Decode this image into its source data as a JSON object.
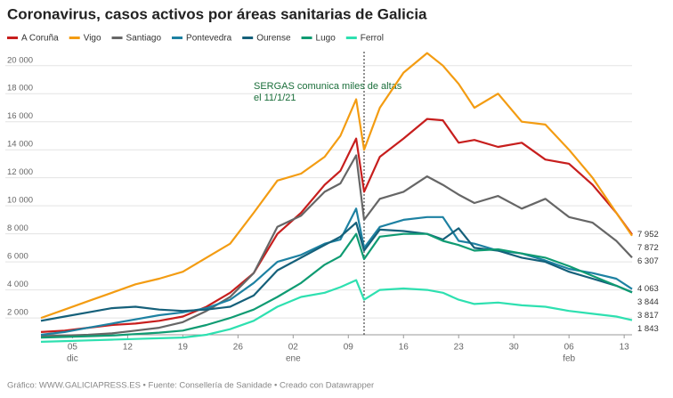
{
  "chart_data": {
    "type": "line",
    "title": "Coronavirus, casos activos por áreas sanitarias de Galicia",
    "footer": "Gráfico: WWW.GALICIAPRESS.ES • Fuente: Consellería de Sanidade • Creado con Datawrapper",
    "x": [
      "12-01",
      "12-04",
      "12-07",
      "12-10",
      "12-13",
      "12-16",
      "12-19",
      "12-22",
      "12-25",
      "12-28",
      "12-31",
      "01-03",
      "01-06",
      "01-08",
      "01-10",
      "01-11",
      "01-13",
      "01-16",
      "01-19",
      "01-21",
      "01-23",
      "01-25",
      "01-28",
      "01-31",
      "02-03",
      "02-06",
      "02-09",
      "02-12",
      "02-14"
    ],
    "xlim": [
      "12-01",
      "02-14"
    ],
    "xticks": [
      {
        "value": "12-05",
        "label": "05",
        "month": "dic"
      },
      {
        "value": "12-12",
        "label": "12"
      },
      {
        "value": "12-19",
        "label": "19"
      },
      {
        "value": "12-26",
        "label": "26"
      },
      {
        "value": "01-02",
        "label": "02",
        "month": "ene"
      },
      {
        "value": "01-09",
        "label": "09"
      },
      {
        "value": "01-16",
        "label": "16"
      },
      {
        "value": "01-23",
        "label": "23"
      },
      {
        "value": "01-30",
        "label": "30"
      },
      {
        "value": "02-06",
        "label": "06",
        "month": "feb"
      },
      {
        "value": "02-13",
        "label": "13"
      }
    ],
    "ylim": [
      800,
      21000
    ],
    "yticks": [
      {
        "value": 2000,
        "label": "2 000"
      },
      {
        "value": 4000,
        "label": "4 000"
      },
      {
        "value": 6000,
        "label": "6 000"
      },
      {
        "value": 8000,
        "label": "8 000"
      },
      {
        "value": 10000,
        "label": "10 000"
      },
      {
        "value": 12000,
        "label": "12 000"
      },
      {
        "value": 14000,
        "label": "14 000"
      },
      {
        "value": 16000,
        "label": "16 000"
      },
      {
        "value": 18000,
        "label": "18 000"
      },
      {
        "value": 20000,
        "label": "20 000"
      }
    ],
    "grid": true,
    "annotation": {
      "x": "01-11",
      "lines": [
        "SERGAS comunica miles de altas",
        "el 11/1/21"
      ],
      "color": "#1a6e3a"
    },
    "series": [
      {
        "name": "A Coruña",
        "color": "#c71e1d",
        "end_label": "7 952",
        "values": [
          1000,
          1100,
          1300,
          1500,
          1600,
          1800,
          2100,
          2800,
          3800,
          5200,
          8000,
          9500,
          11500,
          12500,
          14800,
          11000,
          13500,
          14800,
          16200,
          16100,
          14500,
          14700,
          14200,
          14500,
          13300,
          13000,
          11500,
          9500,
          7952
        ]
      },
      {
        "name": "Vigo",
        "color": "#f39c12",
        "end_label": "7 872",
        "values": [
          2000,
          2600,
          3200,
          3800,
          4400,
          4800,
          5300,
          6300,
          7300,
          9500,
          11800,
          12300,
          13500,
          15000,
          17600,
          14000,
          17000,
          19500,
          20900,
          20000,
          18700,
          17000,
          18000,
          16000,
          15800,
          14000,
          12000,
          9500,
          7872
        ]
      },
      {
        "name": "Santiago",
        "color": "#666666",
        "end_label": "6 307",
        "values": [
          700,
          750,
          800,
          900,
          1100,
          1300,
          1700,
          2500,
          3500,
          5200,
          8500,
          9300,
          11000,
          11600,
          13600,
          9000,
          10500,
          11000,
          12100,
          11500,
          10800,
          10200,
          10700,
          9800,
          10500,
          9200,
          8800,
          7500,
          6307
        ]
      },
      {
        "name": "Pontevedra",
        "color": "#1d81a2",
        "end_label": "4 063",
        "values": [
          800,
          1000,
          1300,
          1600,
          1900,
          2200,
          2400,
          2700,
          3300,
          4500,
          6000,
          6500,
          7300,
          7600,
          9800,
          7000,
          8500,
          9000,
          9200,
          9200,
          7500,
          7300,
          6800,
          6600,
          6100,
          5500,
          5200,
          4800,
          4063
        ]
      },
      {
        "name": "Ourense",
        "color": "#15607a",
        "end_label": "3 844",
        "values": [
          1800,
          2100,
          2400,
          2700,
          2800,
          2600,
          2500,
          2600,
          2800,
          3600,
          5400,
          6300,
          7200,
          7800,
          8800,
          6800,
          8300,
          8200,
          8000,
          7600,
          8400,
          7000,
          6800,
          6300,
          6000,
          5300,
          4800,
          4300,
          3844
        ]
      },
      {
        "name": "Lugo",
        "color": "#0f9b72",
        "end_label": "3 817",
        "values": [
          600,
          650,
          700,
          750,
          850,
          950,
          1100,
          1500,
          2000,
          2600,
          3500,
          4500,
          5800,
          6400,
          8000,
          6200,
          7800,
          8000,
          8000,
          7500,
          7200,
          6800,
          6900,
          6600,
          6300,
          5700,
          5000,
          4300,
          3817
        ]
      },
      {
        "name": "Ferrol",
        "color": "#2ee0b0",
        "end_label": "1 843",
        "values": [
          300,
          350,
          400,
          450,
          500,
          550,
          600,
          800,
          1200,
          1800,
          2800,
          3500,
          3800,
          4200,
          4700,
          3300,
          4000,
          4100,
          4000,
          3800,
          3300,
          3000,
          3100,
          2900,
          2800,
          2500,
          2300,
          2100,
          1843
        ]
      }
    ]
  }
}
